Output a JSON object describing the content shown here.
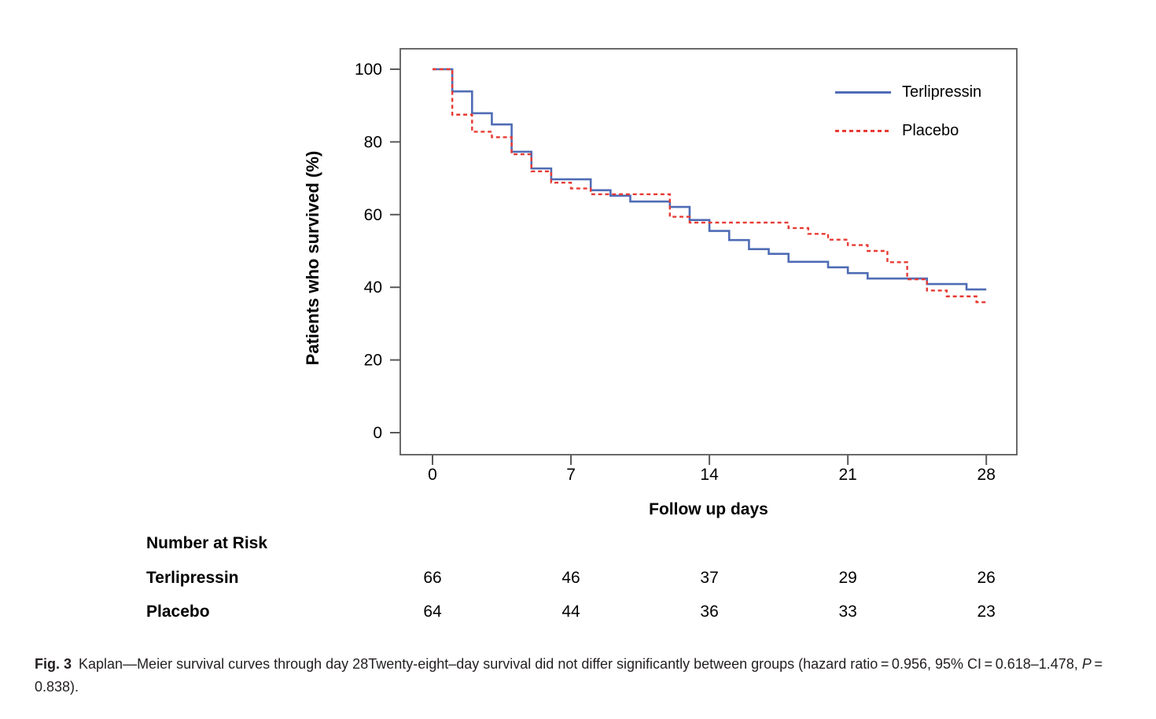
{
  "chart_data": {
    "type": "line",
    "variant": "kaplan_meier_step",
    "title": "",
    "xlabel": "Follow up days",
    "ylabel": "Patients who survived (%)",
    "xlim": [
      0,
      28
    ],
    "ylim": [
      0,
      100
    ],
    "x_ticks": [
      0,
      7,
      14,
      21,
      28
    ],
    "y_ticks": [
      0,
      20,
      40,
      60,
      80,
      100
    ],
    "grid": false,
    "legend_position": "inside-top-right",
    "series": [
      {
        "name": "Terlipressin",
        "line_style": "solid",
        "color": "#4f6cb5",
        "end_day": 28,
        "steps_day_percent": [
          [
            0,
            100
          ],
          [
            1,
            93.9
          ],
          [
            2,
            87.9
          ],
          [
            3,
            84.8
          ],
          [
            4,
            77.3
          ],
          [
            5,
            72.7
          ],
          [
            6,
            69.7
          ],
          [
            8,
            66.7
          ],
          [
            9,
            65.2
          ],
          [
            10,
            63.6
          ],
          [
            12,
            62.1
          ],
          [
            13,
            58.5
          ],
          [
            14,
            55.5
          ],
          [
            15,
            53.0
          ],
          [
            16,
            50.5
          ],
          [
            17,
            49.2
          ],
          [
            18,
            47.0
          ],
          [
            20,
            45.5
          ],
          [
            21,
            43.9
          ],
          [
            22,
            42.4
          ],
          [
            25,
            40.9
          ],
          [
            27,
            39.4
          ]
        ]
      },
      {
        "name": "Placebo",
        "line_style": "dashed",
        "color": "#e73b35",
        "end_day": 28,
        "steps_day_percent": [
          [
            0,
            100
          ],
          [
            1,
            87.5
          ],
          [
            2,
            82.8
          ],
          [
            3,
            81.3
          ],
          [
            4,
            76.6
          ],
          [
            5,
            71.9
          ],
          [
            6,
            68.8
          ],
          [
            7,
            67.2
          ],
          [
            8,
            65.6
          ],
          [
            12,
            59.4
          ],
          [
            13,
            57.8
          ],
          [
            18,
            56.3
          ],
          [
            19,
            54.7
          ],
          [
            20,
            53.1
          ],
          [
            21,
            51.6
          ],
          [
            22,
            50.0
          ],
          [
            23,
            46.9
          ],
          [
            24,
            42.2
          ],
          [
            25,
            39.1
          ],
          [
            26,
            37.5
          ],
          [
            27.5,
            35.9
          ]
        ]
      }
    ]
  },
  "at_risk": {
    "heading": "Number at Risk",
    "days": [
      0,
      7,
      14,
      21,
      28
    ],
    "rows": [
      {
        "label": "Terlipressin",
        "values": [
          "66",
          "46",
          "37",
          "29",
          "26"
        ]
      },
      {
        "label": "Placebo",
        "values": [
          "64",
          "44",
          "36",
          "33",
          "23"
        ]
      }
    ]
  },
  "caption": {
    "label": "Fig. 3",
    "text_main": "Kaplan—Meier survival curves through day 28Twenty-eight–day survival did not differ significantly between groups (hazard ratio = 0.956, 95% CI = 0.618–1.478, ",
    "p_var": "P",
    "text_end": " = 0.838)."
  },
  "colors": {
    "axis": "#58595b",
    "text": "#000000",
    "caption_text": "#231f20",
    "terlipressin_blue": "#4f6cb5",
    "placebo_red": "#e73b35",
    "background": "#ffffff"
  }
}
